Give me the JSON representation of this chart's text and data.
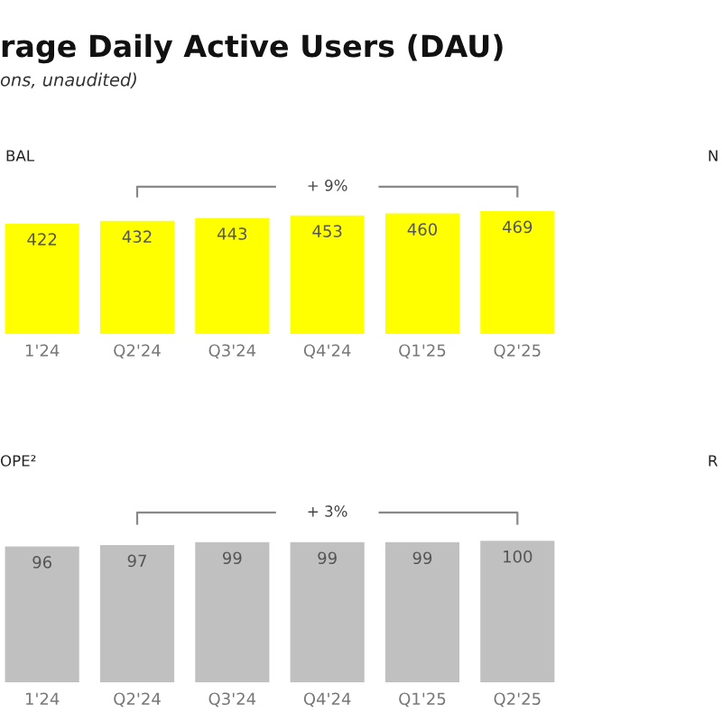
{
  "chart_data": [
    {
      "type": "bar",
      "title": "rage Daily Active Users (DAU)",
      "subtitle": "ons, unaudited)",
      "xlabel": "BAL",
      "categories": [
        "1'24",
        "Q2'24",
        "Q3'24",
        "Q4'24",
        "Q1'25",
        "Q2'25"
      ],
      "values": [
        422,
        432,
        443,
        453,
        460,
        469
      ],
      "color": "#ffff00",
      "data_labels": true,
      "annotations": [
        "+ 9%",
        "N"
      ]
    },
    {
      "type": "bar",
      "xlabel": "OPE²",
      "categories": [
        "1'24",
        "Q2'24",
        "Q3'24",
        "Q4'24",
        "Q1'25",
        "Q2'25"
      ],
      "values": [
        96,
        97,
        99,
        99,
        99,
        100
      ],
      "color": "#c0c0c0",
      "data_labels": true,
      "annotations": [
        "+ 3%",
        "R"
      ]
    }
  ]
}
